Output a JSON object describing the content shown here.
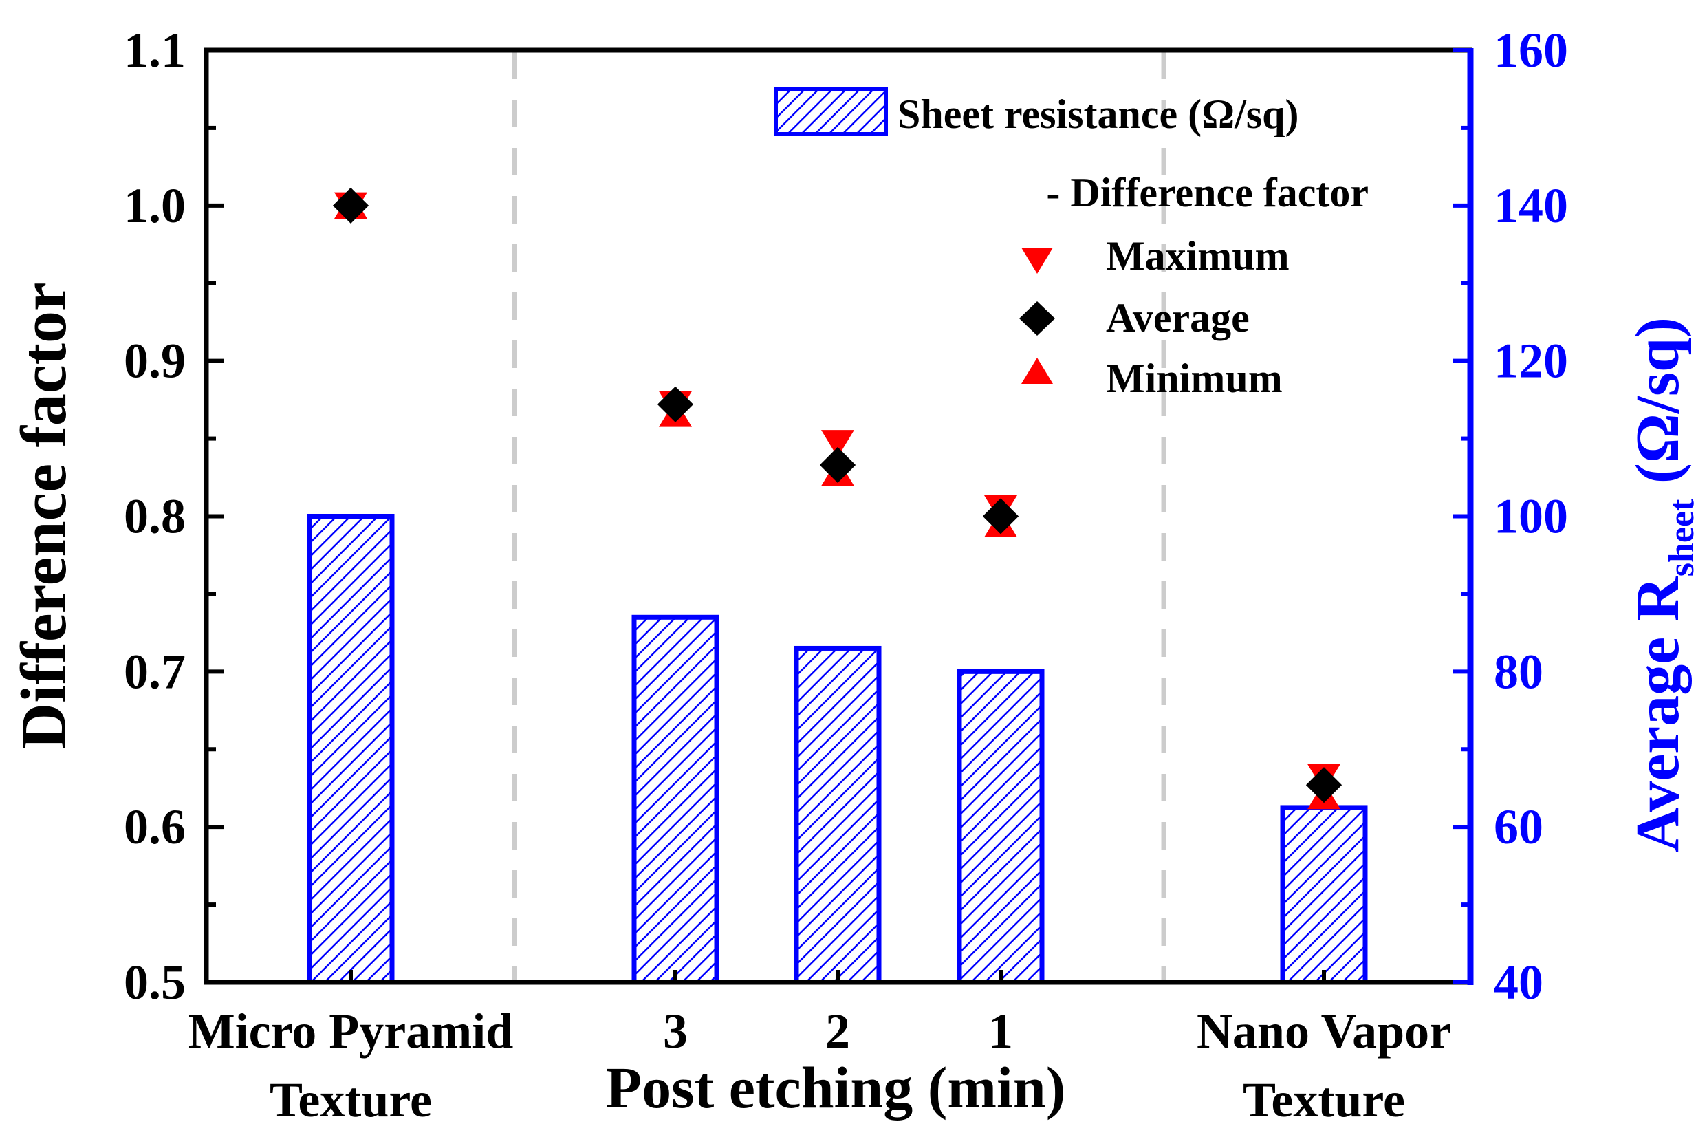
{
  "chart_data": {
    "type": "bar+scatter",
    "categories": [
      "Micro Pyramid Texture",
      "3",
      "2",
      "1",
      "Nano Vapor Texture"
    ],
    "category_labels": [
      [
        "Micro Pyramid",
        "Texture"
      ],
      [
        "3"
      ],
      [
        "2"
      ],
      [
        "1"
      ],
      [
        "Nano Vapor",
        "Texture"
      ]
    ],
    "xlabel": "Post etching (min)",
    "ylabel_left": "Difference factor",
    "ylabel_right": {
      "prefix": "Average R",
      "subscript": "sheet",
      "suffix": " (Ω/sq)"
    },
    "ylim_left": [
      0.5,
      1.1
    ],
    "yticks_left": [
      "0.5",
      "0.6",
      "0.7",
      "0.8",
      "0.9",
      "1.0",
      "1.1"
    ],
    "ylim_right": [
      40,
      160
    ],
    "yticks_right": [
      "40",
      "60",
      "80",
      "100",
      "120",
      "140",
      "160"
    ],
    "bars": {
      "name": "Sheet resistance (Ω/sq)",
      "axis": "right",
      "values": [
        100,
        87,
        83,
        80,
        62.5
      ],
      "color": "#0000ff",
      "pattern": "hatch"
    },
    "series": [
      {
        "name": "Maximum",
        "marker": "triangle-down",
        "color": "#ff0000",
        "values": [
          1.0,
          0.872,
          0.847,
          0.805,
          0.632
        ]
      },
      {
        "name": "Average",
        "marker": "diamond",
        "color": "#000000",
        "values": [
          1.0,
          0.872,
          0.833,
          0.8,
          0.627
        ]
      },
      {
        "name": "Minimum",
        "marker": "triangle-up",
        "color": "#ff0000",
        "values": [
          1.0,
          0.866,
          0.828,
          0.795,
          0.62
        ]
      }
    ],
    "legend": {
      "bar_entry": "Sheet resistance (Ω/sq)",
      "header": "- Difference factor",
      "entries": [
        "Maximum",
        "Average",
        "Minimum"
      ],
      "position": "top-right"
    },
    "separators": "dashed vertical lines between groups"
  }
}
